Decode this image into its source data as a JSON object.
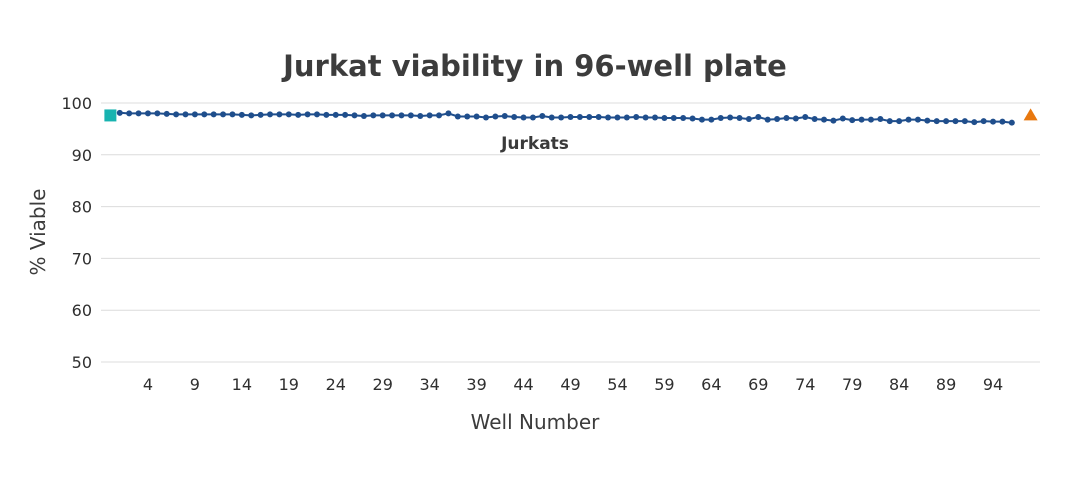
{
  "chart_data": {
    "type": "line",
    "title": "Jurkat viability in 96-well plate",
    "xlabel": "Well Number",
    "ylabel": "% Viable",
    "ylim": [
      50,
      100
    ],
    "xlim": [
      -1,
      99
    ],
    "yticks": [
      50,
      60,
      70,
      80,
      90,
      100
    ],
    "xticks": [
      4,
      9,
      14,
      19,
      24,
      29,
      34,
      39,
      44,
      49,
      54,
      59,
      64,
      69,
      74,
      79,
      84,
      89,
      94
    ],
    "grid": true,
    "series": [
      {
        "name": "Jurkats",
        "color": "#1f4e8c",
        "x": [
          1,
          2,
          3,
          4,
          5,
          6,
          7,
          8,
          9,
          10,
          11,
          12,
          13,
          14,
          15,
          16,
          17,
          18,
          19,
          20,
          21,
          22,
          23,
          24,
          25,
          26,
          27,
          28,
          29,
          30,
          31,
          32,
          33,
          34,
          35,
          36,
          37,
          38,
          39,
          40,
          41,
          42,
          43,
          44,
          45,
          46,
          47,
          48,
          49,
          50,
          51,
          52,
          53,
          54,
          55,
          56,
          57,
          58,
          59,
          60,
          61,
          62,
          63,
          64,
          65,
          66,
          67,
          68,
          69,
          70,
          71,
          72,
          73,
          74,
          75,
          76,
          77,
          78,
          79,
          80,
          81,
          82,
          83,
          84,
          85,
          86,
          87,
          88,
          89,
          90,
          91,
          92,
          93,
          94,
          95,
          96
        ],
        "values": [
          98.1,
          98.0,
          98.0,
          98.0,
          98.0,
          97.9,
          97.8,
          97.8,
          97.8,
          97.8,
          97.8,
          97.8,
          97.8,
          97.7,
          97.6,
          97.7,
          97.8,
          97.8,
          97.8,
          97.7,
          97.8,
          97.8,
          97.7,
          97.7,
          97.7,
          97.6,
          97.5,
          97.6,
          97.6,
          97.6,
          97.6,
          97.6,
          97.5,
          97.6,
          97.6,
          98.0,
          97.4,
          97.4,
          97.4,
          97.2,
          97.4,
          97.5,
          97.3,
          97.2,
          97.2,
          97.5,
          97.2,
          97.2,
          97.3,
          97.3,
          97.3,
          97.3,
          97.2,
          97.2,
          97.2,
          97.3,
          97.2,
          97.2,
          97.1,
          97.1,
          97.1,
          97.0,
          96.8,
          96.8,
          97.1,
          97.2,
          97.1,
          96.9,
          97.3,
          96.8,
          96.9,
          97.1,
          97.0,
          97.3,
          96.9,
          96.8,
          96.6,
          97.0,
          96.7,
          96.8,
          96.8,
          96.9,
          96.5,
          96.5,
          96.8,
          96.8,
          96.6,
          96.5,
          96.5,
          96.5,
          96.5,
          96.3,
          96.5,
          96.4,
          96.4,
          96.2
        ],
        "marker": "circle"
      }
    ],
    "special_markers": [
      {
        "shape": "square",
        "color": "#17b3b0",
        "x": 0,
        "y": 97.6
      },
      {
        "shape": "triangle",
        "color": "#e8780f",
        "x": 98,
        "y": 97.6
      }
    ]
  }
}
